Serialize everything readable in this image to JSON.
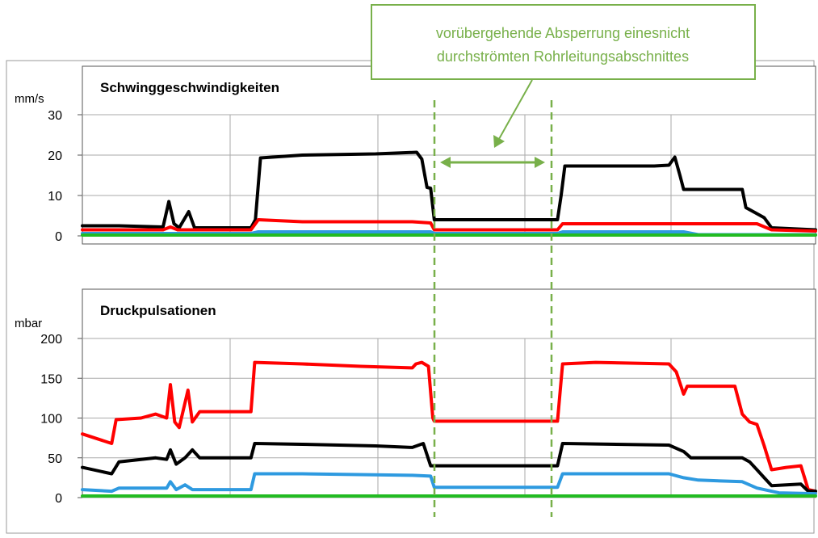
{
  "annotation": {
    "lines": [
      "vorübergehende Absperrung einesnicht",
      "durchströmten Rohrleitungsabschnittes"
    ],
    "color": "#78b04a"
  },
  "chart_data": [
    {
      "type": "line",
      "title": "Schwinggeschwindigkeiten",
      "ylabel": "mm/s",
      "ylim": [
        0,
        30
      ],
      "yticks": [
        "0",
        "10",
        "20",
        "30"
      ],
      "yticks_values": [
        0,
        10,
        20,
        30
      ],
      "xlim": [
        0,
        100
      ],
      "grid": true,
      "series": [
        {
          "color": "#000000",
          "points": [
            [
              0,
              2.5
            ],
            [
              5,
              2.5
            ],
            [
              11,
              2.2
            ],
            [
              11.8,
              8.5
            ],
            [
              12.5,
              3
            ],
            [
              13.2,
              2
            ],
            [
              14.5,
              6
            ],
            [
              15.3,
              2
            ],
            [
              23,
              2
            ],
            [
              23.6,
              4
            ],
            [
              24.3,
              19.3
            ],
            [
              30,
              20
            ],
            [
              40,
              20.3
            ],
            [
              45.6,
              20.7
            ],
            [
              46.3,
              19
            ],
            [
              47,
              12
            ],
            [
              47.5,
              11.8
            ],
            [
              48,
              4
            ],
            [
              53,
              4
            ],
            [
              59,
              4
            ],
            [
              64.8,
              4
            ],
            [
              65.3,
              10
            ],
            [
              65.8,
              17.3
            ],
            [
              70,
              17.3
            ],
            [
              78,
              17.3
            ],
            [
              80,
              17.5
            ],
            [
              80.8,
              19.5
            ],
            [
              81.5,
              15
            ],
            [
              82,
              11.5
            ],
            [
              90,
              11.5
            ],
            [
              90.5,
              7
            ],
            [
              92,
              5.5
            ],
            [
              93,
              4.5
            ],
            [
              94,
              2
            ],
            [
              100,
              1.5
            ]
          ]
        },
        {
          "color": "#ff0000",
          "points": [
            [
              0,
              1.5
            ],
            [
              11,
              1.5
            ],
            [
              12,
              2.2
            ],
            [
              13,
              1.5
            ],
            [
              23,
              1.5
            ],
            [
              24,
              4
            ],
            [
              30,
              3.5
            ],
            [
              45,
              3.5
            ],
            [
              47.5,
              3.2
            ],
            [
              48,
              1.5
            ],
            [
              64.8,
              1.5
            ],
            [
              65.5,
              3
            ],
            [
              80,
              3
            ],
            [
              92,
              3
            ],
            [
              94,
              1.5
            ],
            [
              100,
              1.2
            ]
          ]
        },
        {
          "color": "#2e9ae0",
          "points": [
            [
              0,
              0.6
            ],
            [
              23,
              0.6
            ],
            [
              24,
              1
            ],
            [
              47.5,
              1
            ],
            [
              48,
              0.6
            ],
            [
              64.8,
              0.6
            ],
            [
              65.5,
              1
            ],
            [
              82,
              1
            ],
            [
              84,
              0.3
            ],
            [
              100,
              0.3
            ]
          ]
        },
        {
          "color": "#22bb22",
          "points": [
            [
              0,
              0.2
            ],
            [
              100,
              0.2
            ]
          ]
        }
      ]
    },
    {
      "type": "line",
      "title": "Druckpulsationen",
      "ylabel": "mbar",
      "ylim": [
        0,
        200
      ],
      "yticks": [
        "0",
        "50",
        "100",
        "150",
        "200"
      ],
      "yticks_values": [
        0,
        50,
        100,
        150,
        200
      ],
      "xlim": [
        0,
        100
      ],
      "grid": true,
      "series": [
        {
          "color": "#ff0000",
          "points": [
            [
              0,
              80
            ],
            [
              4,
              68
            ],
            [
              4.6,
              98
            ],
            [
              8,
              100
            ],
            [
              10,
              105
            ],
            [
              11.5,
              100
            ],
            [
              12,
              142
            ],
            [
              12.6,
              95
            ],
            [
              13.2,
              88
            ],
            [
              14.4,
              135
            ],
            [
              15,
              95
            ],
            [
              16,
              108
            ],
            [
              23,
              108
            ],
            [
              23.5,
              170
            ],
            [
              30,
              168
            ],
            [
              38,
              165
            ],
            [
              45,
              163
            ],
            [
              45.5,
              168
            ],
            [
              46.3,
              170
            ],
            [
              47.2,
              165
            ],
            [
              47.8,
              100
            ],
            [
              48,
              96
            ],
            [
              55,
              96
            ],
            [
              64.8,
              96
            ],
            [
              65.5,
              168
            ],
            [
              70,
              170
            ],
            [
              80,
              168
            ],
            [
              81,
              158
            ],
            [
              82,
              130
            ],
            [
              82.5,
              140
            ],
            [
              89,
              140
            ],
            [
              90,
              105
            ],
            [
              91,
              95
            ],
            [
              92,
              92
            ],
            [
              93,
              65
            ],
            [
              94,
              35
            ],
            [
              96,
              38
            ],
            [
              98,
              40
            ],
            [
              99,
              10
            ],
            [
              100,
              8
            ]
          ]
        },
        {
          "color": "#000000",
          "points": [
            [
              0,
              38
            ],
            [
              4,
              30
            ],
            [
              5,
              45
            ],
            [
              10,
              50
            ],
            [
              11.5,
              48
            ],
            [
              12,
              60
            ],
            [
              12.8,
              42
            ],
            [
              14,
              50
            ],
            [
              15,
              60
            ],
            [
              16,
              50
            ],
            [
              23,
              50
            ],
            [
              23.5,
              68
            ],
            [
              30,
              67
            ],
            [
              40,
              65
            ],
            [
              45,
              63
            ],
            [
              46.5,
              68
            ],
            [
              47.5,
              40
            ],
            [
              48,
              40
            ],
            [
              64.8,
              40
            ],
            [
              65.5,
              68
            ],
            [
              80,
              66
            ],
            [
              82,
              58
            ],
            [
              83,
              50
            ],
            [
              90,
              50
            ],
            [
              91,
              45
            ],
            [
              92,
              35
            ],
            [
              93,
              25
            ],
            [
              94,
              15
            ],
            [
              98,
              17
            ],
            [
              99,
              8
            ],
            [
              100,
              8
            ]
          ]
        },
        {
          "color": "#2e9ae0",
          "points": [
            [
              0,
              10
            ],
            [
              4,
              8
            ],
            [
              5,
              12
            ],
            [
              11.5,
              12
            ],
            [
              12,
              20
            ],
            [
              12.8,
              10
            ],
            [
              14,
              16
            ],
            [
              15,
              10
            ],
            [
              23,
              10
            ],
            [
              23.5,
              30
            ],
            [
              30,
              30
            ],
            [
              45,
              28
            ],
            [
              47.5,
              27
            ],
            [
              48,
              13
            ],
            [
              64.8,
              13
            ],
            [
              65.5,
              30
            ],
            [
              80,
              30
            ],
            [
              82,
              25
            ],
            [
              84,
              22
            ],
            [
              90,
              20
            ],
            [
              92,
              12
            ],
            [
              95,
              6
            ],
            [
              100,
              5
            ]
          ]
        },
        {
          "color": "#22bb22",
          "points": [
            [
              0,
              2
            ],
            [
              100,
              2
            ]
          ]
        }
      ]
    }
  ]
}
